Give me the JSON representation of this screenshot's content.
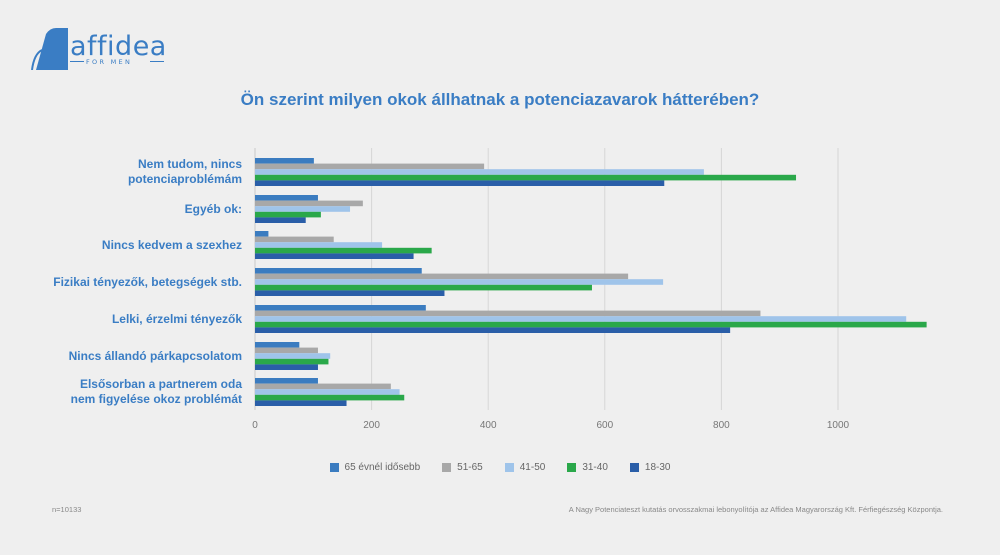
{
  "brand": {
    "name": "affidea",
    "tagline": "FOR MEN",
    "color": "#3a7dc4"
  },
  "chart_data": {
    "type": "bar",
    "orientation": "horizontal",
    "title": "Ön szerint milyen okok állhatnak a potenciazavarok hátterében?",
    "categories": [
      "Nem tudom, nincs potenciaproblémám",
      "Egyéb ok:",
      "Nincs kedvem a szexhez",
      "Fizikai tényezők, betegségek stb.",
      "Lelki, érzelmi tényezők",
      "Nincs állandó párkapcsolatom",
      "Elsősorban a partnerem oda nem figyelése okoz problémát"
    ],
    "category_lines": [
      [
        "Nem tudom, nincs",
        "potenciaproblémám"
      ],
      [
        "Egyéb ok:"
      ],
      [
        "Nincs kedvem a szexhez"
      ],
      [
        "Fizikai tényezők, betegségek stb."
      ],
      [
        "Lelki, érzelmi tényezők"
      ],
      [
        "Nincs állandó párkapcsolatom"
      ],
      [
        "Elsősorban a partnerem oda",
        "nem figyelése okoz problémát"
      ]
    ],
    "series": [
      {
        "name": "65 évnél idősebb",
        "color": "#3b7cc0",
        "values": [
          101,
          108,
          23,
          286,
          293,
          76,
          108
        ]
      },
      {
        "name": "51-65",
        "color": "#a8a8a8",
        "values": [
          393,
          185,
          135,
          640,
          867,
          108,
          233
        ]
      },
      {
        "name": "41-50",
        "color": "#9fc4ea",
        "values": [
          770,
          163,
          218,
          700,
          1117,
          129,
          248
        ]
      },
      {
        "name": "31-40",
        "color": "#2aa84a",
        "values": [
          928,
          113,
          303,
          578,
          1152,
          126,
          256
        ]
      },
      {
        "name": "18-30",
        "color": "#2a5ea8",
        "values": [
          702,
          87,
          272,
          325,
          815,
          108,
          157
        ]
      }
    ],
    "xlim": [
      0,
      1160
    ],
    "xticks": [
      0,
      200,
      400,
      600,
      800,
      1000
    ],
    "grid": true,
    "legend_position": "bottom"
  },
  "footnotes": {
    "left": "n=10133",
    "right": "A Nagy Potenciateszt kutatás orvosszakmai lebonyolítója az Affidea Magyarország Kft. Férfiegészség Központja."
  }
}
